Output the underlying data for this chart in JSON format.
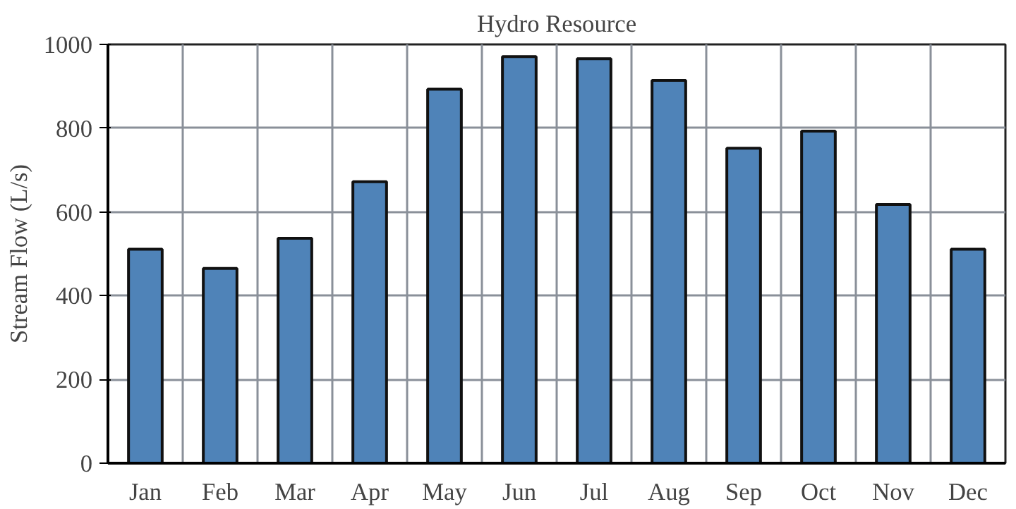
{
  "chart_data": {
    "type": "bar",
    "title": "Hydro Resource",
    "ylabel": "Stream Flow (L/s)",
    "categories": [
      "Jan",
      "Feb",
      "Mar",
      "Apr",
      "May",
      "Jun",
      "Jul",
      "Aug",
      "Sep",
      "Oct",
      "Nov",
      "Dec"
    ],
    "values": [
      511,
      465,
      537,
      672,
      893,
      971,
      966,
      914,
      752,
      793,
      618,
      511
    ],
    "color": "#4f83b8",
    "ylim": [
      0,
      1000
    ],
    "yticks": [
      0,
      200,
      400,
      600,
      800,
      1000
    ],
    "grid": true
  }
}
